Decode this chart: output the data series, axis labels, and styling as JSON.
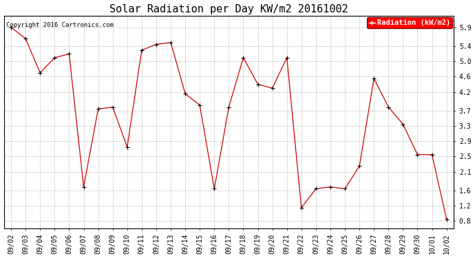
{
  "title": "Solar Radiation per Day KW/m2 20161002",
  "copyright_text": "Copyright 2016 Cartronics.com",
  "legend_label": "Radiation (kW/m2)",
  "dates": [
    "09/02",
    "09/03",
    "09/04",
    "09/05",
    "09/06",
    "09/07",
    "09/08",
    "09/09",
    "09/10",
    "09/11",
    "09/12",
    "09/13",
    "09/14",
    "09/15",
    "09/16",
    "09/17",
    "09/18",
    "09/19",
    "09/20",
    "09/21",
    "09/22",
    "09/23",
    "09/24",
    "09/25",
    "09/26",
    "09/27",
    "09/28",
    "09/29",
    "09/30",
    "10/01",
    "10/02"
  ],
  "values": [
    5.9,
    5.6,
    4.7,
    5.1,
    5.2,
    1.7,
    3.75,
    3.8,
    2.75,
    5.3,
    5.45,
    5.5,
    4.15,
    3.85,
    1.65,
    3.8,
    5.1,
    4.4,
    4.3,
    5.1,
    1.15,
    1.65,
    1.7,
    1.65,
    2.25,
    4.55,
    3.8,
    3.35,
    2.55,
    2.55,
    0.85
  ],
  "line_color": "#cc0000",
  "marker": "+",
  "marker_color": "black",
  "background_color": "#ffffff",
  "plot_bg_color": "#ffffff",
  "grid_color": "#bbbbbb",
  "ylim": [
    0.6,
    6.2
  ],
  "yticks": [
    0.8,
    1.2,
    1.6,
    2.1,
    2.5,
    2.9,
    3.3,
    3.7,
    4.2,
    4.6,
    5.0,
    5.4,
    5.9
  ],
  "title_fontsize": 11,
  "legend_fontsize": 7.5,
  "tick_fontsize": 7,
  "copyright_fontsize": 6.5
}
